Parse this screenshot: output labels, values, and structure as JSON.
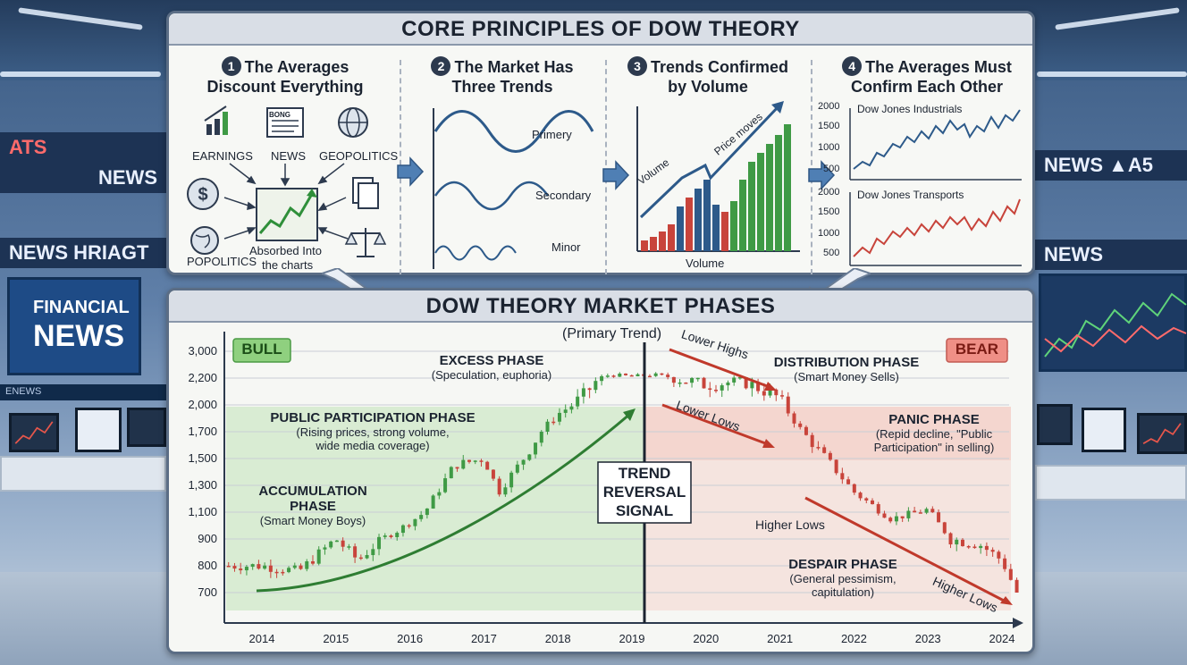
{
  "background": {
    "ticker_left_top": "ATS",
    "ticker_left_mid": "NEWS",
    "ticker_left_low": "NEWS HRIAGT",
    "ticker_left_small": "ENEWS",
    "screen_left_line1": "FINANCIAL",
    "screen_left_line2": "NEWS",
    "ticker_right_mid": "NEWS ▲A5",
    "ticker_right_low": "NEWS"
  },
  "top_panel": {
    "title": "CORE PRINCIPLES OF DOW THEORY",
    "principles": [
      {
        "number": "1",
        "title_line1": "The Averages",
        "title_line2": "Discount Everything",
        "labels": {
          "earnings": "EARNINGS",
          "news": "NEWS",
          "geopolitics": "GEOPOLITICS",
          "newspaper_header": "BONG",
          "popolitics": "POPOLITICS",
          "absorbed_line1": "Absorbed Into",
          "absorbed_line2": "the charts"
        }
      },
      {
        "number": "2",
        "title_line1": "The Market Has",
        "title_line2": "Three Trends",
        "waves": [
          "Primery",
          "Secondary",
          "Minor"
        ]
      },
      {
        "number": "3",
        "title_line1": "Trends Confirmed",
        "title_line2": "by Volume",
        "labels": {
          "volume_arrow": "Volume",
          "price_arrow": "Price moves",
          "axis": "Volume"
        }
      },
      {
        "number": "4",
        "title_line1": "The Averages Must",
        "title_line2": "Confirm Each Other",
        "industrials": {
          "label": "Dow Jones Industrials",
          "ticks": [
            "2000",
            "1500",
            "1000",
            "500"
          ]
        },
        "transports": {
          "label": "Dow Jones Transports",
          "ticks": [
            "2000",
            "1500",
            "1000",
            "500"
          ]
        }
      }
    ]
  },
  "bottom_panel": {
    "title": "DOW THEORY MARKET PHASES",
    "subtitle": "(Primary Trend)",
    "bull_label": "BULL",
    "bear_label": "BEAR",
    "reversal_line1": "TREND",
    "reversal_line2": "REVERSAL",
    "reversal_line3": "SIGNAL",
    "phases": {
      "accumulation": {
        "title1": "ACCUMULATION",
        "title2": "PHASE",
        "desc": "(Smart Money Boys)"
      },
      "public": {
        "title": "PUBLIC PARTICIPATION PHASE",
        "desc1": "(Rising prices, strong volume,",
        "desc2": "wide media coverage)"
      },
      "excess": {
        "title": "EXCESS PHASE",
        "desc": "(Speculation, euphoria)"
      },
      "distribution": {
        "title": "DISTRIBUTION PHASE",
        "desc": "(Smart Money Sells)"
      },
      "panic": {
        "title": "PANIC PHASE",
        "desc1": "(Repid decline, \"Public",
        "desc2": "Participation\" in selling)"
      },
      "despair": {
        "title": "DESPAIR PHASE",
        "desc1": "(General pessimism,",
        "desc2": "capitulation)"
      }
    },
    "annotations": {
      "lower_highs": "Lower Highs",
      "lower_lows": "Lower Lows",
      "higher_lows_mid": "Higher Lows",
      "higher_lows_end": "Higher Lows"
    },
    "colors": {
      "bull_zone": "#cfe8c8",
      "bear_zone": "#f4cdc6",
      "up_candle": "#3f9a45",
      "down_candle": "#c8443b",
      "trend_arrow_bull": "#2e7d32",
      "trend_arrow_bear": "#c0392b"
    }
  },
  "chart_data": {
    "type": "line",
    "title": "DOW THEORY MARKET PHASES",
    "subtitle": "(Primary Trend)",
    "y_tick_labels": [
      "3,000",
      "2,200",
      "2,000",
      "1,700",
      "1,500",
      "1,300",
      "1,100",
      "900",
      "800",
      "700"
    ],
    "x_tick_labels": [
      "2014",
      "2015",
      "2016",
      "2017",
      "2018",
      "2019",
      "2020",
      "2021",
      "2022",
      "2023",
      "2024"
    ],
    "series": [
      {
        "values_by_year": [
          [
            "2014",
            800
          ],
          [
            "2014.5",
            780
          ],
          [
            "2015",
            900
          ],
          [
            "2015.3",
            820
          ],
          [
            "2015.8",
            950
          ],
          [
            "2016.2",
            1100
          ],
          [
            "2016.6",
            1450
          ],
          [
            "2017",
            1500
          ],
          [
            "2017.2",
            1250
          ],
          [
            "2017.6",
            1550
          ],
          [
            "2018",
            1900
          ],
          [
            "2018.4",
            2100
          ],
          [
            "2018.7",
            2300
          ],
          [
            "2019",
            2250
          ],
          [
            "2019.3",
            2300
          ],
          [
            "2019.6",
            2200
          ],
          [
            "2020",
            2150
          ],
          [
            "2020.5",
            2180
          ],
          [
            "2021",
            2050
          ],
          [
            "2021.3",
            1700
          ],
          [
            "2021.7",
            1450
          ],
          [
            "2022",
            1250
          ],
          [
            "2022.5",
            1050
          ],
          [
            "2023",
            1120
          ],
          [
            "2023.3",
            900
          ],
          [
            "2023.7",
            880
          ],
          [
            "2024",
            820
          ],
          [
            "2024.2",
            700
          ]
        ]
      }
    ]
  }
}
